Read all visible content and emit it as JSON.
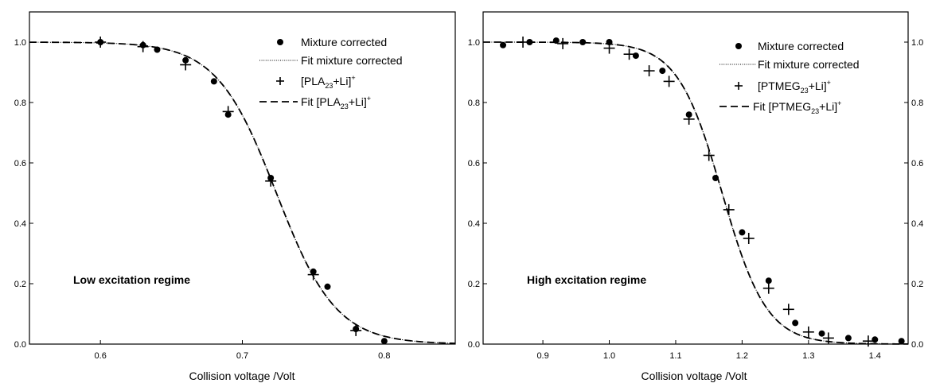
{
  "chart_data": [
    {
      "type": "scatter",
      "title": "",
      "xlabel": "Collision voltage /Volt",
      "ylabel": "",
      "xlim": [
        0.55,
        0.85
      ],
      "ylim": [
        0.0,
        1.1
      ],
      "xticks": [
        "0.6",
        "0.7",
        "0.8"
      ],
      "xtick_values": [
        0.6,
        0.7,
        0.8
      ],
      "yticks": [
        "0.0",
        "0.2",
        "0.4",
        "0.6",
        "0.8",
        "1.0"
      ],
      "ytick_values": [
        0.0,
        0.2,
        0.4,
        0.6,
        0.8,
        1.0
      ],
      "ytick_side": "left",
      "annotation": "Low excitation regime",
      "legend_placement": "top-right",
      "legend": [
        {
          "style": "dot",
          "text": "Mixture corrected"
        },
        {
          "style": "dotted",
          "text": "Fit mixture corrected"
        },
        {
          "style": "plus",
          "text_main": "[PLA",
          "text_sub": "23",
          "text_rest": "+Li]",
          "text_sup": "+"
        },
        {
          "style": "dashed",
          "text_main": "Fit [PLA",
          "text_sub": "23",
          "text_rest": "+Li]",
          "text_sup": "+"
        }
      ],
      "fit_x0": 0.724,
      "fit_width": 0.021,
      "series": [
        {
          "marker": "dot",
          "x": [
            0.6,
            0.63,
            0.64,
            0.66,
            0.68,
            0.69,
            0.72,
            0.75,
            0.76,
            0.78,
            0.8
          ],
          "y": [
            1.0,
            0.99,
            0.975,
            0.94,
            0.87,
            0.76,
            0.55,
            0.24,
            0.19,
            0.05,
            0.01
          ]
        },
        {
          "marker": "plus",
          "x": [
            0.6,
            0.63,
            0.66,
            0.69,
            0.72,
            0.75,
            0.78
          ],
          "y": [
            1.0,
            0.985,
            0.925,
            0.77,
            0.54,
            0.23,
            0.045
          ]
        }
      ]
    },
    {
      "type": "scatter",
      "title": "",
      "xlabel": "Collision voltage /Volt",
      "ylabel": "",
      "xlim": [
        0.81,
        1.45
      ],
      "ylim": [
        0.0,
        1.1
      ],
      "xticks": [
        "0.9",
        "1.0",
        "1.1",
        "1.2",
        "1.3",
        "1.4"
      ],
      "xtick_values": [
        0.9,
        1.0,
        1.1,
        1.2,
        1.3,
        1.4
      ],
      "yticks": [
        "0.0",
        "0.2",
        "0.4",
        "0.6",
        "0.8",
        "1.0"
      ],
      "ytick_values": [
        0.0,
        0.2,
        0.4,
        0.6,
        0.8,
        1.0
      ],
      "ytick_side": "both",
      "annotation": "High excitation regime",
      "legend_placement": "top-right",
      "legend": [
        {
          "style": "dot",
          "text": "Mixture corrected"
        },
        {
          "style": "dotted",
          "text": "Fit mixture corrected"
        },
        {
          "style": "plus",
          "text_main": "[PTMEG",
          "text_sub": "23",
          "text_rest": "+Li]",
          "text_sup": "+"
        },
        {
          "style": "dashed",
          "text_main": "Fit [PTMEG",
          "text_sub": "23",
          "text_rest": "+Li]",
          "text_sup": "+"
        }
      ],
      "fit_x0": 1.17,
      "fit_width": 0.0335,
      "series": [
        {
          "marker": "dot",
          "x": [
            0.84,
            0.88,
            0.92,
            0.96,
            1.0,
            1.04,
            1.08,
            1.12,
            1.16,
            1.2,
            1.24,
            1.28,
            1.32,
            1.36,
            1.4,
            1.44
          ],
          "y": [
            0.99,
            1.0,
            1.005,
            1.0,
            1.0,
            0.955,
            0.905,
            0.76,
            0.55,
            0.37,
            0.21,
            0.07,
            0.035,
            0.02,
            0.015,
            0.01
          ]
        },
        {
          "marker": "plus",
          "x": [
            0.87,
            0.93,
            1.0,
            1.03,
            1.06,
            1.09,
            1.12,
            1.15,
            1.18,
            1.21,
            1.24,
            1.27,
            1.3,
            1.33,
            1.39
          ],
          "y": [
            1.0,
            0.995,
            0.98,
            0.96,
            0.905,
            0.87,
            0.745,
            0.625,
            0.445,
            0.35,
            0.185,
            0.115,
            0.04,
            0.02,
            0.01
          ]
        }
      ]
    }
  ]
}
